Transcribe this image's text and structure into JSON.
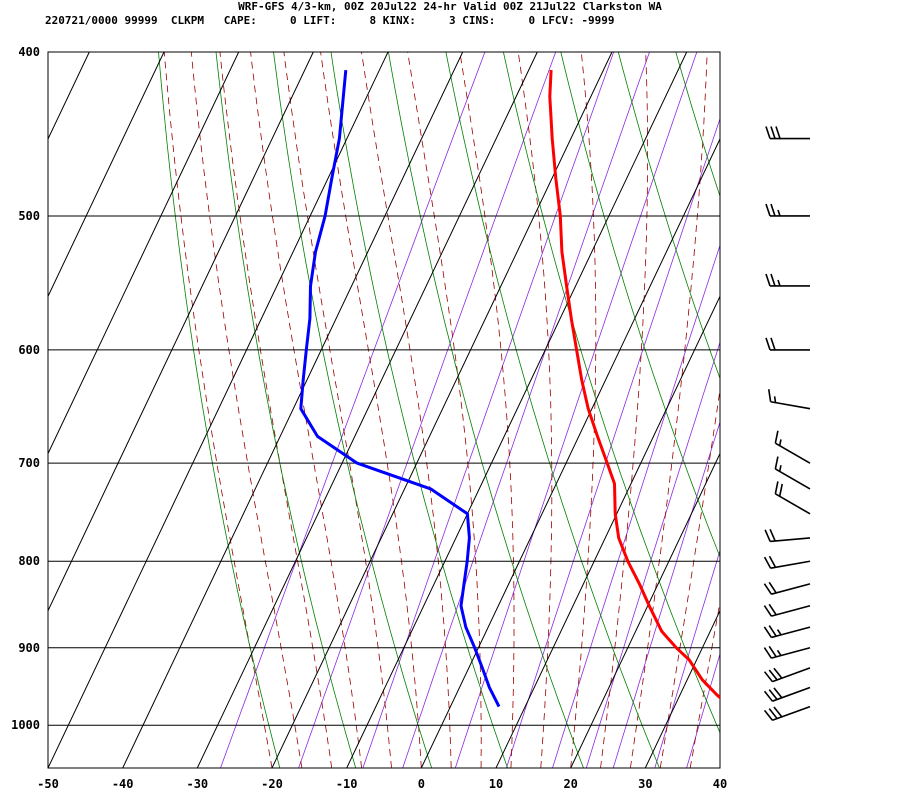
{
  "header": {
    "title": "WRF-GFS 4/3-km, 00Z 20Jul22 24-hr Valid 00Z 21Jul22 Clarkston WA",
    "info": "220721/0000 99999  CLKPM   CAPE:     0 LIFT:     8 KINX:     3 CINS:     0 LFCV: -9999"
  },
  "colors": {
    "temperature": "#ff0000",
    "dewpoint": "#0000ff",
    "isotherm": "#000000",
    "dry_adiabat": "#008000",
    "moist_adiabat": "#9b0000",
    "mixing_ratio": "#8a2be2",
    "wind_barb": "#000000"
  },
  "chart_data": {
    "type": "line",
    "title": "",
    "xlabel": "",
    "ylabel": "",
    "x_scale": "skew-T (isotherms skewed)",
    "y_scale": "log pressure (hPa)",
    "xlim": [
      -50,
      40
    ],
    "ylim": [
      1000,
      400
    ],
    "x_ticks": [
      -50,
      -40,
      -30,
      -20,
      -10,
      0,
      10,
      20,
      30,
      40
    ],
    "y_ticks": [
      400,
      500,
      600,
      700,
      800,
      900,
      1000
    ],
    "grid": true,
    "series": [
      {
        "key": "temperature",
        "pressure": [
          975,
          960,
          940,
          915,
          900,
          880,
          850,
          825,
          800,
          775,
          750,
          720,
          700,
          675,
          650,
          625,
          600,
          575,
          550,
          525,
          500,
          475,
          450,
          425,
          410
        ],
        "values": [
          37.5,
          35,
          32,
          29,
          26.5,
          23.5,
          20.2,
          17.5,
          14.5,
          11.8,
          9.8,
          7.8,
          5.5,
          2.5,
          -0.5,
          -3.2,
          -5.8,
          -8.5,
          -11.2,
          -14,
          -16.5,
          -19.5,
          -22.5,
          -25.5,
          -27
        ]
      },
      {
        "key": "dewpoint",
        "pressure": [
          975,
          950,
          925,
          900,
          875,
          850,
          825,
          800,
          775,
          750,
          725,
          700,
          675,
          650,
          625,
          600,
          575,
          550,
          525,
          500,
          475,
          450,
          410
        ],
        "values": [
          6.5,
          4,
          1.8,
          -0.5,
          -3,
          -5,
          -6,
          -7,
          -8.2,
          -10,
          -16.5,
          -28,
          -35,
          -39,
          -40.5,
          -42,
          -43.5,
          -45.5,
          -47,
          -48,
          -49.5,
          -51,
          -54.5
        ]
      }
    ],
    "wind_barbs": [
      {
        "pressure": 975,
        "speed_kt": 30,
        "direction_deg": 250
      },
      {
        "pressure": 950,
        "speed_kt": 30,
        "direction_deg": 250
      },
      {
        "pressure": 925,
        "speed_kt": 30,
        "direction_deg": 250
      },
      {
        "pressure": 900,
        "speed_kt": 25,
        "direction_deg": 255
      },
      {
        "pressure": 875,
        "speed_kt": 25,
        "direction_deg": 255
      },
      {
        "pressure": 850,
        "speed_kt": 20,
        "direction_deg": 255
      },
      {
        "pressure": 825,
        "speed_kt": 20,
        "direction_deg": 255
      },
      {
        "pressure": 800,
        "speed_kt": 20,
        "direction_deg": 260
      },
      {
        "pressure": 775,
        "speed_kt": 20,
        "direction_deg": 265
      },
      {
        "pressure": 750,
        "speed_kt": 20,
        "direction_deg": 300
      },
      {
        "pressure": 725,
        "speed_kt": 15,
        "direction_deg": 300
      },
      {
        "pressure": 700,
        "speed_kt": 15,
        "direction_deg": 300
      },
      {
        "pressure": 650,
        "speed_kt": 15,
        "direction_deg": 280
      },
      {
        "pressure": 600,
        "speed_kt": 20,
        "direction_deg": 270
      },
      {
        "pressure": 550,
        "speed_kt": 25,
        "direction_deg": 270
      },
      {
        "pressure": 500,
        "speed_kt": 25,
        "direction_deg": 270
      },
      {
        "pressure": 450,
        "speed_kt": 30,
        "direction_deg": 270
      }
    ]
  }
}
